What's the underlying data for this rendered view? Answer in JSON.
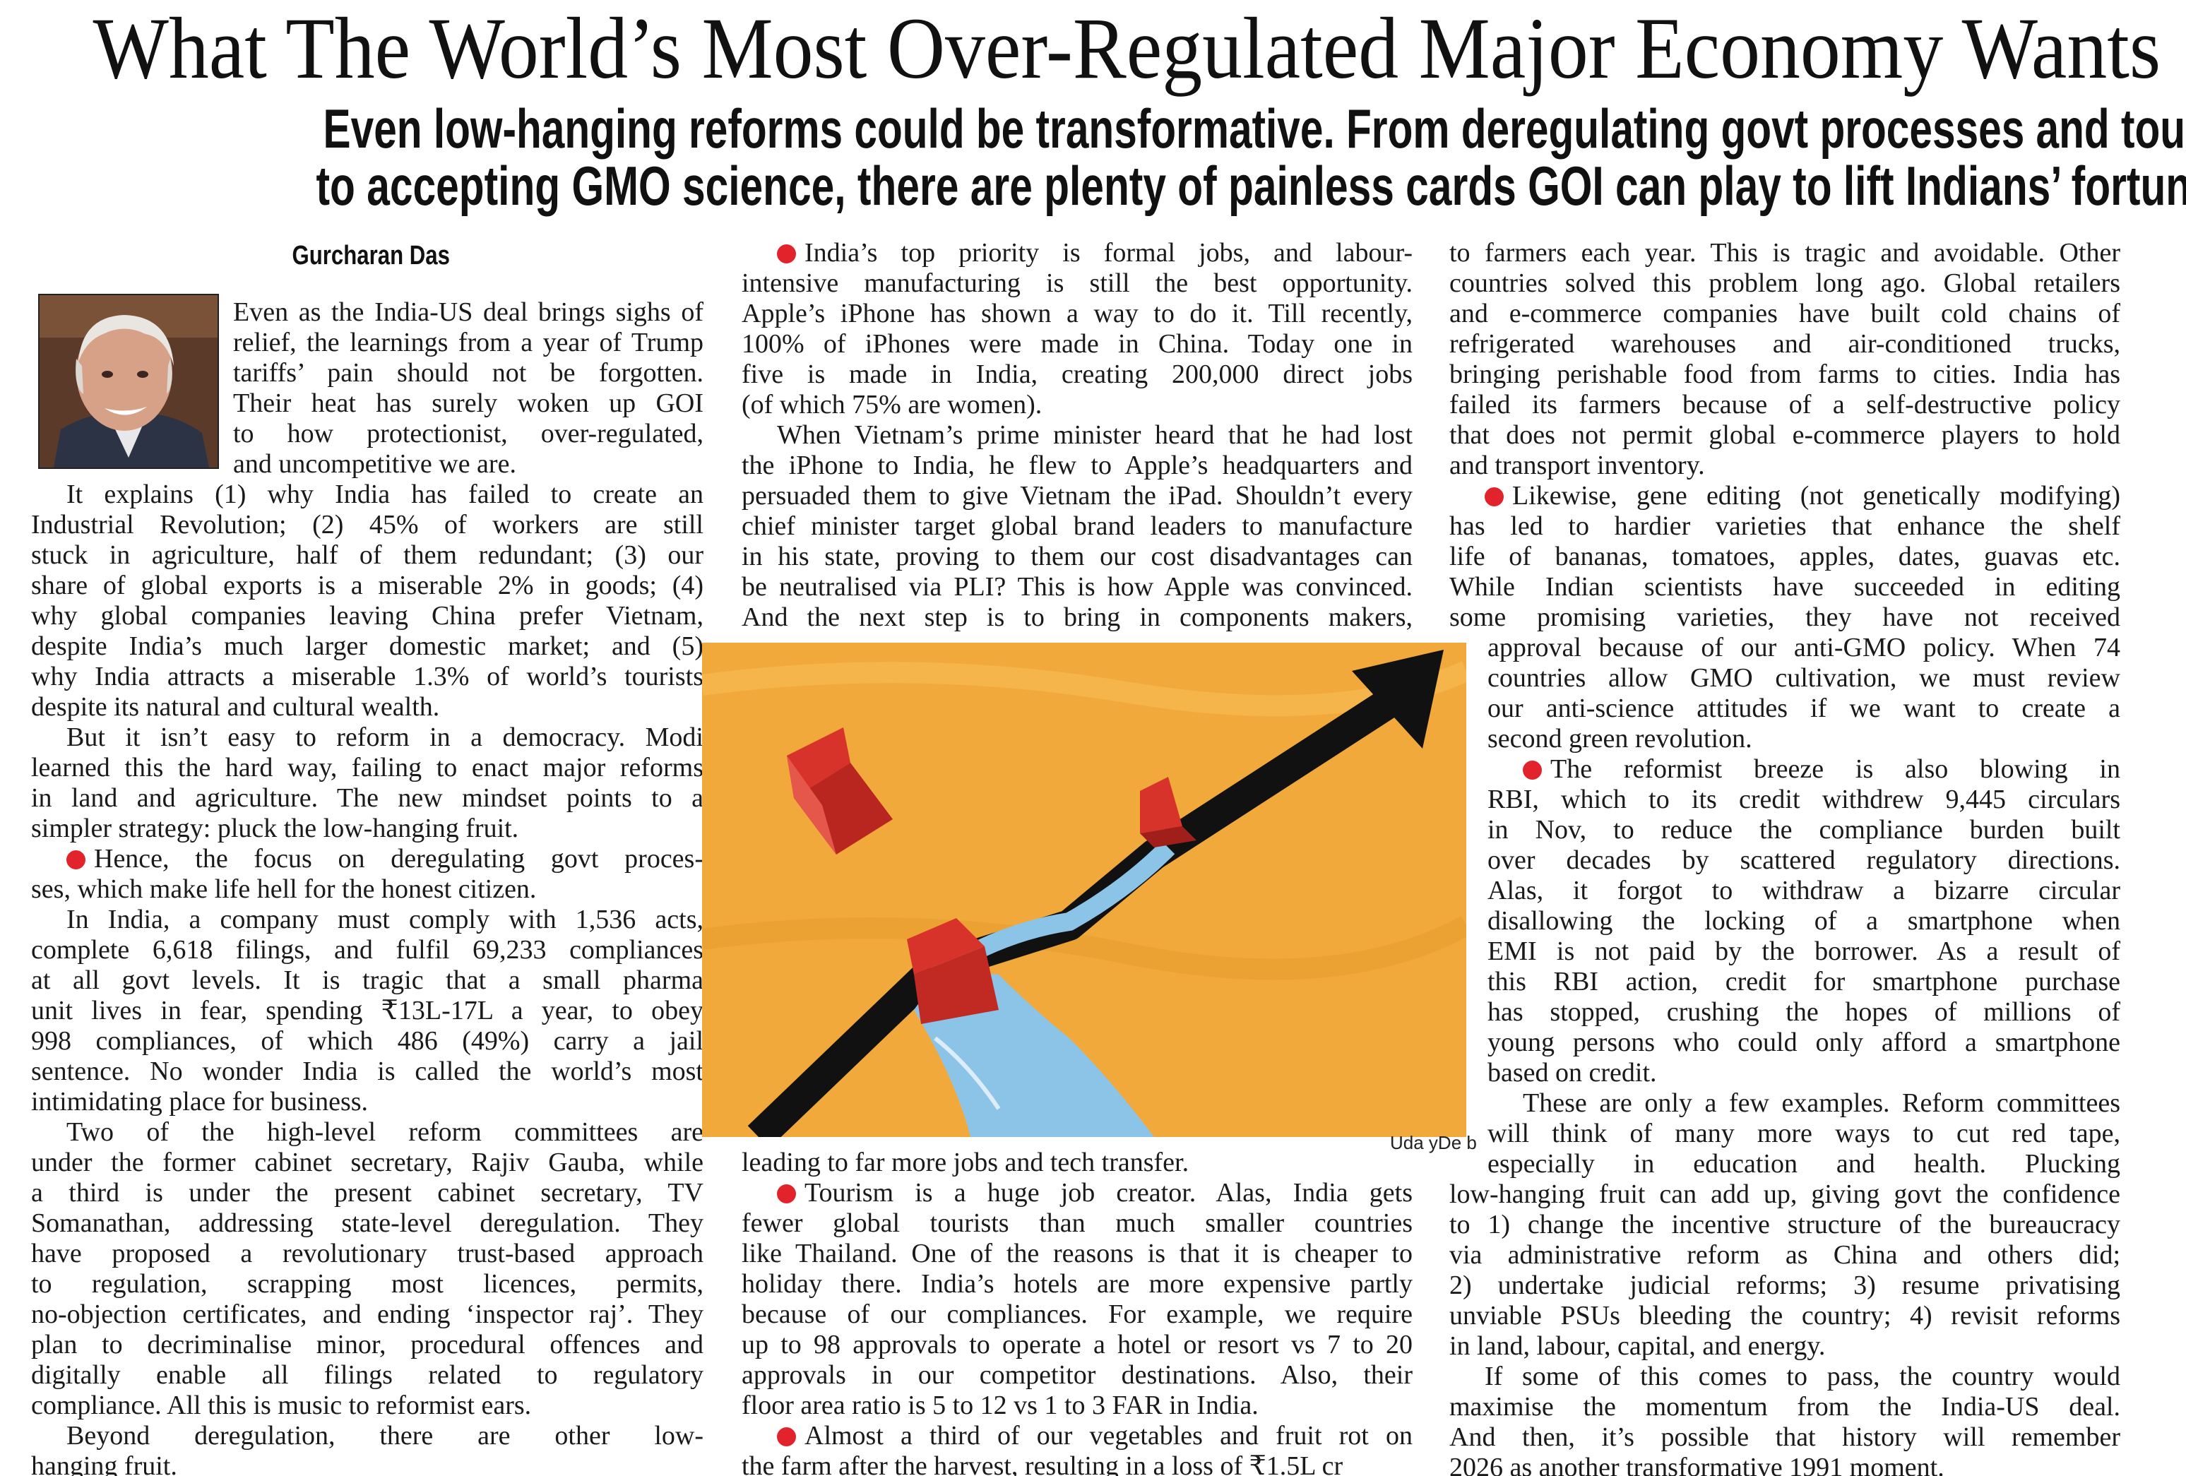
{
  "headline": "What The World’s Most Over-Regulated Major Economy Wants",
  "deck": [
    "Even low-hanging reforms could be transformative. From deregulating govt processes and tourism",
    "to accepting GMO science, there are plenty of painless cards GOI can play to lift Indians’ fortunes"
  ],
  "byline": "Gurcharan Das",
  "illustration_credit": "Uda yDe b",
  "colors": {
    "bullet": "#e3232b",
    "illustration_background": "#f2a93b",
    "water": "#8cc4e8",
    "blocks": "#d8332a"
  },
  "icons": {
    "bullet": "red-dot",
    "author_photo": "author-portrait",
    "illustration": "rising-arrow-with-blocks"
  },
  "columns": [
    {
      "paragraphs": [
        {
          "bullet": false,
          "lines": [
            "Even as the India-US deal brings sighs of",
            "relief, the learnings from a year of Trump",
            "tariffs’ pain should not be forgotten.",
            "Their heat has surely woken up GOI",
            "to how protectionist, over-regulated,",
            "and uncompetitive we are."
          ]
        },
        {
          "bullet": false,
          "lines": [
            "It explains (1) why India has failed to create an",
            "Industrial Revolution; (2) 45% of workers are still",
            "stuck in agriculture, half of them redundant; (3) our",
            "share of global exports is a miserable 2% in goods; (4)",
            "why global companies leaving China prefer Vietnam,",
            "despite India’s much larger domestic market; and (5)",
            "why India attracts a miserable 1.3% of world’s tourists",
            "despite its natural and cultural wealth."
          ]
        },
        {
          "bullet": false,
          "lines": [
            "But it isn’t easy to reform in a democracy. Modi",
            "learned this the hard way, failing to enact major reforms",
            "in land and agriculture. The new mindset points to a",
            "simpler strategy: pluck the low-hanging fruit."
          ]
        },
        {
          "bullet": true,
          "lines": [
            "Hence, the focus on deregulating govt proces-",
            "ses, which make life hell for the honest citizen."
          ]
        },
        {
          "bullet": false,
          "lines": [
            "In India, a company must comply with 1,536 acts,",
            "complete 6,618 filings, and fulfil 69,233 compliances",
            "at all govt levels. It is tragic that a small pharma",
            "unit lives in fear, spending ₹13L-17L a year, to obey",
            "998 compliances, of which 486 (49%) carry a jail",
            "sentence. No wonder India is called the world’s most",
            "intimidating place for business."
          ]
        },
        {
          "bullet": false,
          "lines": [
            "Two of the high-level reform committees are",
            "under the former cabinet secretary, Rajiv Gauba, while",
            "a third is under the present cabinet secretary, TV",
            "Somanathan, addressing state-level deregulation. They",
            "have proposed a revolutionary trust-based approach",
            "to regulation, scrapping most licences, permits,",
            "no-objection certificates, and ending ‘inspector raj’. They",
            "plan to decriminalise minor, procedural offences and",
            "digitally enable all filings related to regulatory",
            "compliance. All this is music to reformist ears."
          ]
        },
        {
          "bullet": false,
          "lines": [
            "Beyond deregulation, there are other low-",
            "hanging fruit."
          ]
        }
      ]
    },
    {
      "paragraphs": [
        {
          "bullet": true,
          "lines": [
            "India’s top priority is formal jobs, and labour-",
            "intensive manufacturing is still the best opportunity.",
            "Apple’s iPhone has shown a way to do it. Till recently,",
            "100% of iPhones were made in China. Today one in",
            "five is made in India, creating 200,000 direct jobs",
            "(of which 75% are women)."
          ]
        },
        {
          "bullet": false,
          "lines": [
            "When Vietnam’s prime minister heard that he had lost",
            "the iPhone to India, he flew to Apple’s headquarters and",
            "persuaded them to give Vietnam the iPad. Shouldn’t every",
            "chief minister target global brand leaders to manufacture",
            "in his state, proving to them our cost disadvantages can",
            "be neutralised via PLI? This is how Apple was convinced.",
            "And the next step is to bring in components makers,",
            "leading to far more jobs and tech transfer."
          ]
        },
        {
          "bullet": true,
          "lines": [
            "Tourism is a huge job creator. Alas, India gets",
            "fewer global tourists than much smaller countries",
            "like Thailand. One of the reasons is that it is cheaper to",
            "holiday there. India’s hotels are more expensive partly",
            "because of our compliances. For example, we require",
            "up to 98 approvals to operate a hotel or resort vs 7 to 20",
            "approvals in our competitor destinations. Also, their",
            "floor area ratio is 5 to 12 vs 1 to 3 FAR in India."
          ]
        },
        {
          "bullet": true,
          "lines": [
            "Almost a third of our vegetables and fruit rot on",
            "the farm after the harvest, resulting in a loss of ₹1.5L cr"
          ]
        }
      ]
    },
    {
      "paragraphs": [
        {
          "bullet": false,
          "lines": [
            "to farmers each year. This is tragic and avoidable. Other",
            "countries solved this problem long ago. Global retailers",
            "and e-commerce companies have built cold chains of",
            "refrigerated warehouses and air-conditioned trucks,",
            "bringing perishable food from farms to cities. India has",
            "failed its farmers because of a self-destructive policy",
            "that does not permit global e-commerce players to hold",
            "and transport inventory."
          ]
        },
        {
          "bullet": true,
          "lines": [
            "Likewise, gene editing (not genetically modifying)",
            "has led to hardier varieties that enhance the shelf",
            "life of bananas, tomatoes, apples, dates, guavas etc.",
            "While Indian scientists have succeeded in editing",
            "some promising varieties, they have not received",
            "approval because of our anti-GMO policy. When 74",
            "countries allow GMO cultivation, we must review",
            "our anti-science attitudes if we want to create a",
            "second green revolution."
          ]
        },
        {
          "bullet": true,
          "lines": [
            "The reformist breeze is also blowing in",
            "RBI, which to its credit withdrew 9,445 circulars",
            "in Nov, to reduce the compliance burden built",
            "over decades by scattered regulatory directions.",
            "Alas, it forgot to withdraw a bizarre circular",
            "disallowing the locking of a smartphone when",
            "EMI is not paid by the borrower. As a result of",
            "this RBI action, credit for smartphone purchase",
            "has stopped, crushing the hopes of millions of",
            "young persons who could only afford a smartphone",
            "based on credit."
          ]
        },
        {
          "bullet": false,
          "lines": [
            "These are only a few examples. Reform committees",
            "will think of many more ways to cut red tape,",
            "especially in education and health. Plucking",
            "low-hanging fruit can add up, giving govt the confidence",
            "to 1) change the incentive structure of the bureaucracy",
            "via administrative reform as China and others did;",
            "2) undertake judicial reforms; 3) resume privatising",
            "unviable PSUs bleeding the country; 4) revisit reforms",
            "in land, labour, capital, and energy."
          ]
        },
        {
          "bullet": false,
          "lines": [
            "If some of this comes to pass, the country would",
            "maximise the momentum from the India-US deal.",
            "And then, it’s possible that history will remember",
            "2026 as another transformative 1991 moment."
          ]
        }
      ]
    }
  ]
}
